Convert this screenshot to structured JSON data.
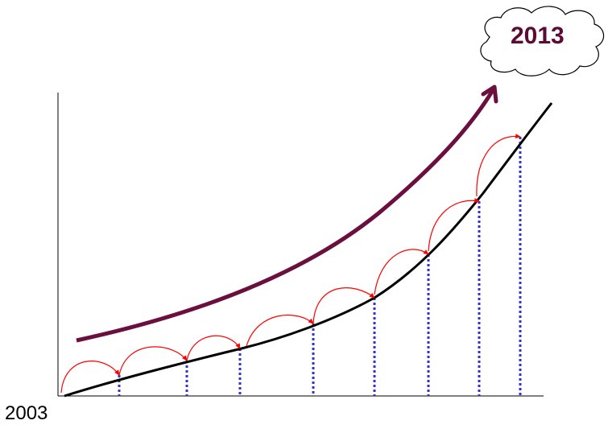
{
  "labels": {
    "start_year": "2003",
    "end_year": "2013"
  },
  "colors": {
    "main_curve": "#000000",
    "trend_arrow": "#6b0f3f",
    "step_arrows": "#ff0000",
    "dotted_lines": "#3333cc",
    "cloud_text": "#5c0a36",
    "axes": "#000000"
  },
  "icons": {
    "cloud": "cloud-icon"
  }
}
